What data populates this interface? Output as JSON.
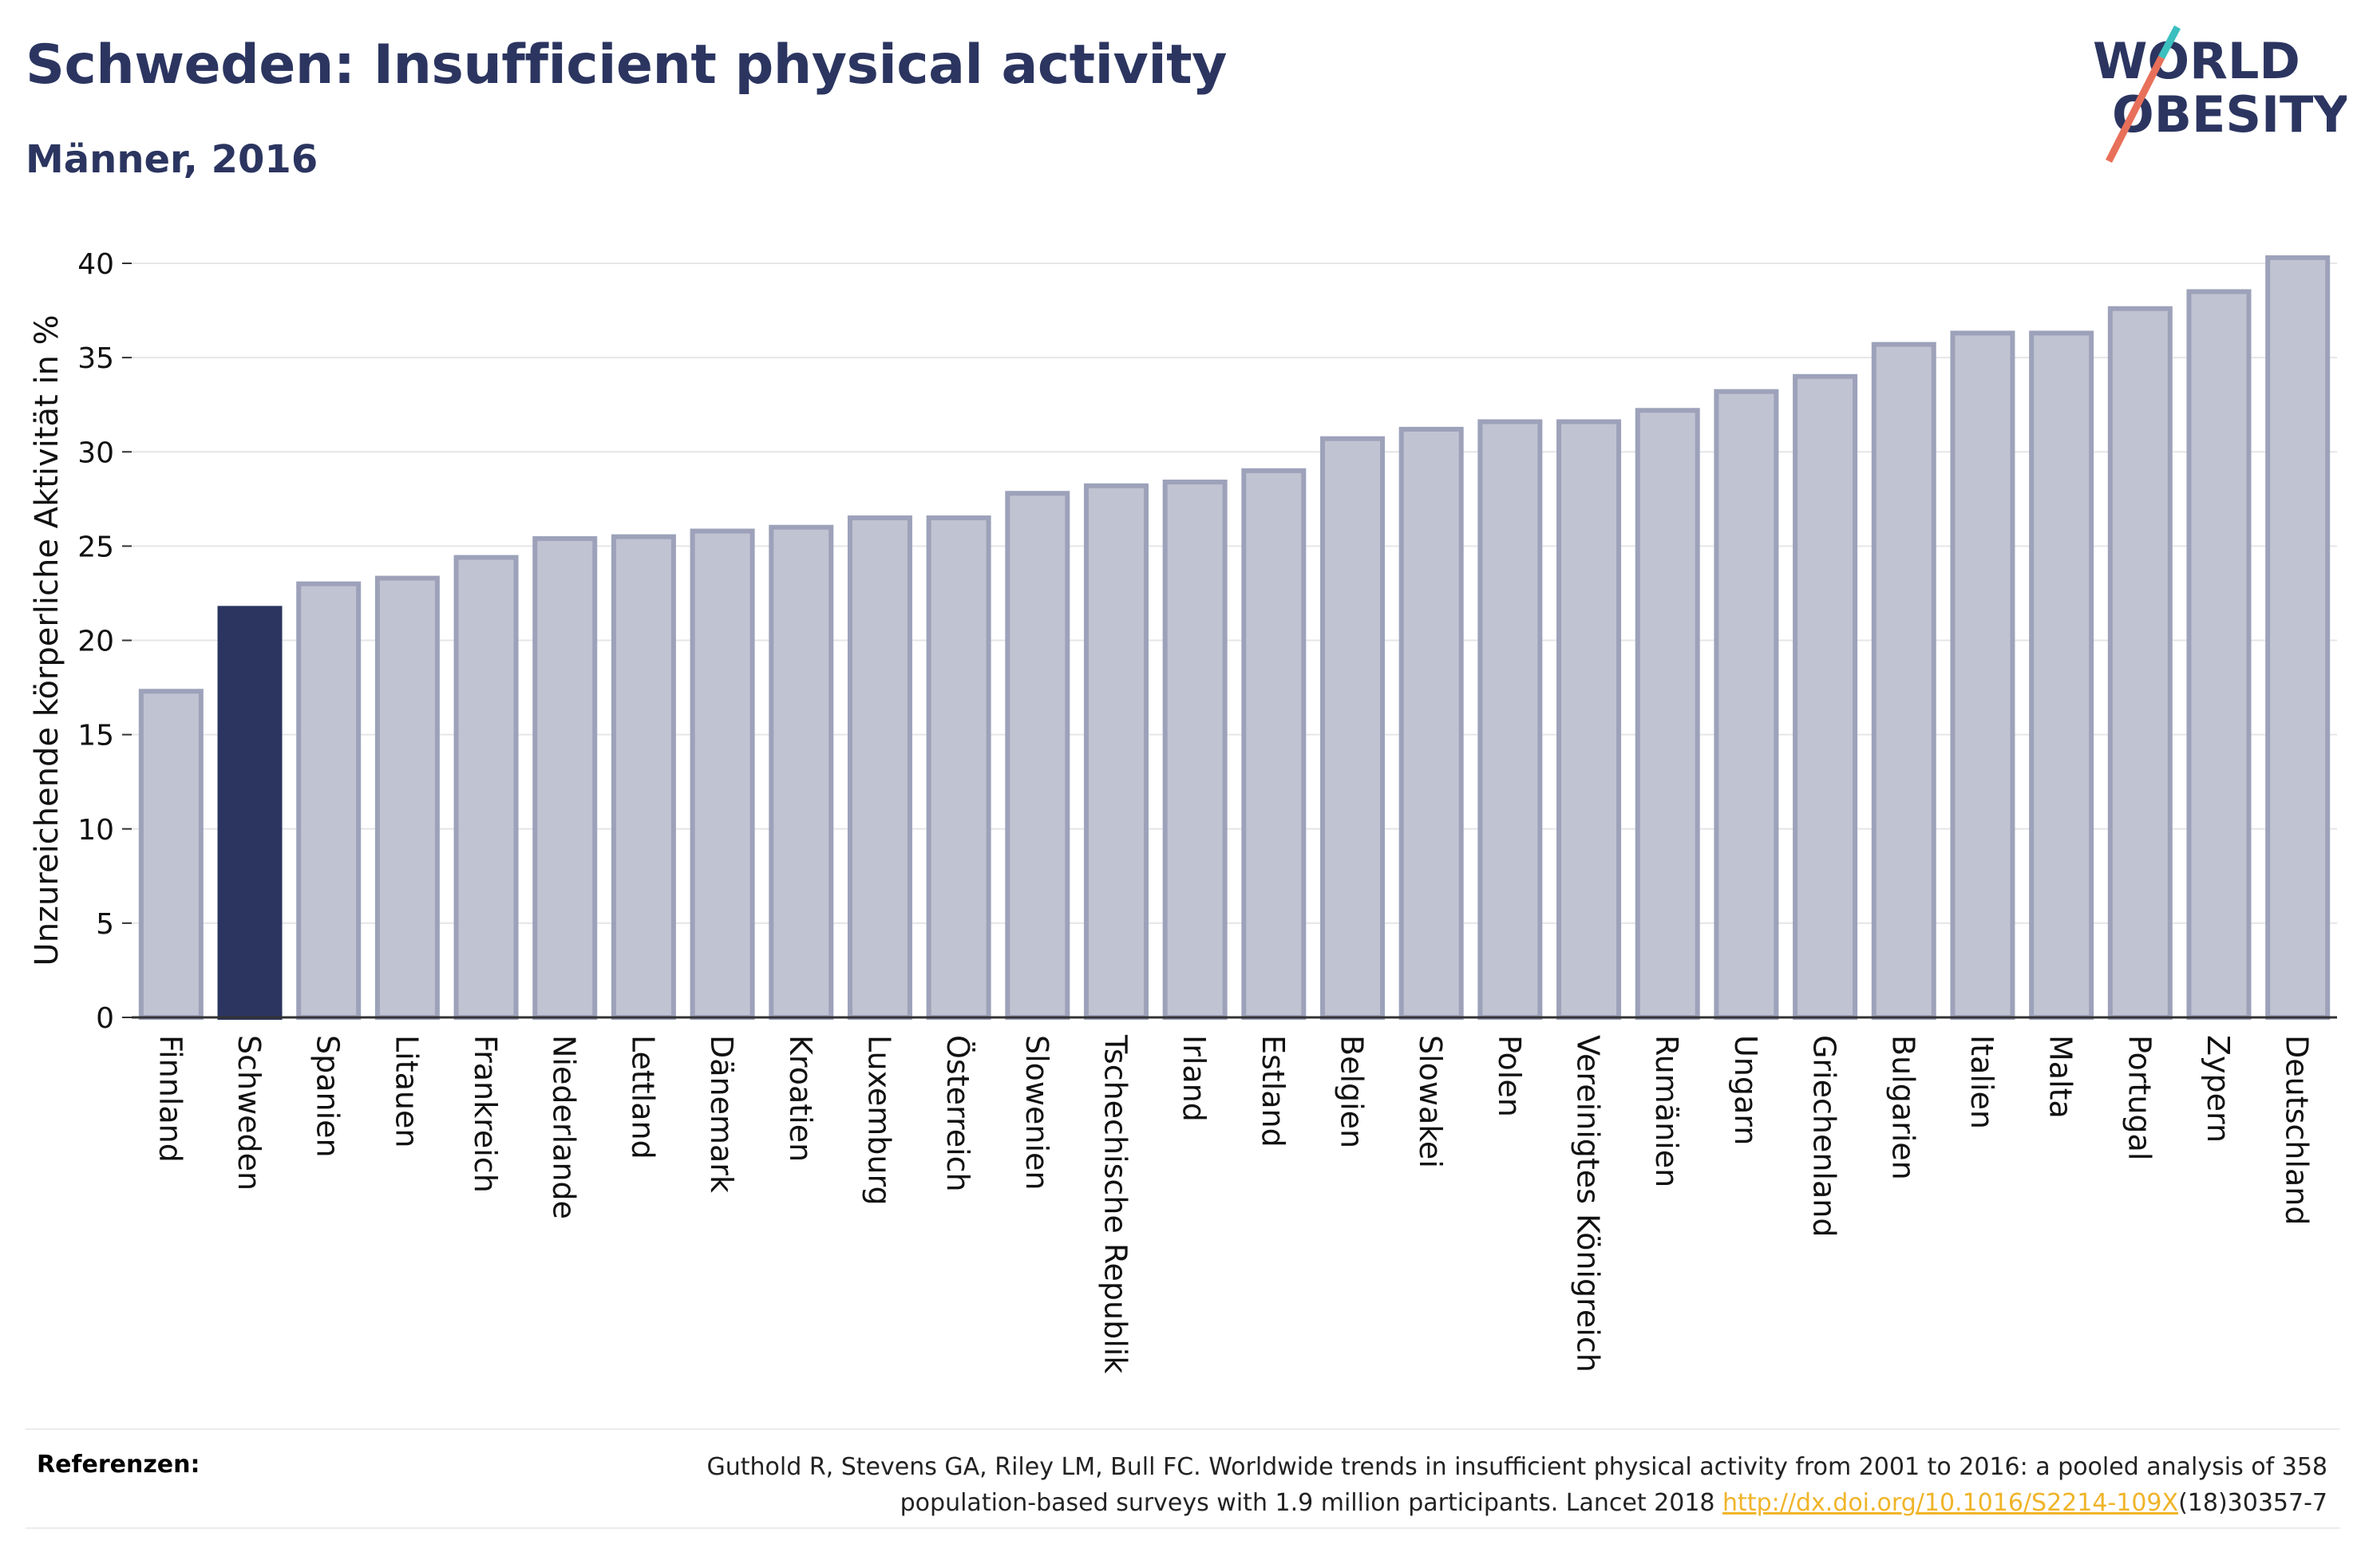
{
  "header": {
    "title": "Schweden: Insufficient physical activity",
    "subtitle": "Männer, 2016"
  },
  "logo": {
    "line1": "WORLD",
    "line2": "OBESITY",
    "brand_color": "#2b3560",
    "accent_teal": "#3bbfbf",
    "accent_coral": "#e8705a"
  },
  "colors": {
    "bar_fill": "#c0c3d1",
    "bar_stroke": "#9da2ba",
    "highlight": "#2b3560",
    "grid": "#e6e6ea"
  },
  "chart_data": {
    "type": "bar",
    "ylabel": "Unzureichende körperliche Aktivität in %",
    "ylim": [
      0,
      40
    ],
    "yticks": [
      0,
      5,
      10,
      15,
      20,
      25,
      30,
      35,
      40
    ],
    "grid": true,
    "highlight_category": "Schweden",
    "categories": [
      "Finnland",
      "Schweden",
      "Spanien",
      "Litauen",
      "Frankreich",
      "Niederlande",
      "Lettland",
      "Dänemark",
      "Kroatien",
      "Luxemburg",
      "Österreich",
      "Slowenien",
      "Tschechische Republik",
      "Irland",
      "Estland",
      "Belgien",
      "Slowakei",
      "Polen",
      "Vereinigtes Königreich",
      "Rumänien",
      "Ungarn",
      "Griechenland",
      "Bulgarien",
      "Italien",
      "Malta",
      "Portugal",
      "Zypern",
      "Deutschland"
    ],
    "values": [
      17.3,
      21.7,
      23.0,
      23.3,
      24.4,
      25.4,
      25.5,
      25.8,
      26.0,
      26.5,
      26.5,
      27.8,
      28.2,
      28.4,
      29.0,
      30.7,
      31.2,
      31.6,
      31.6,
      32.2,
      33.2,
      34.0,
      35.7,
      36.3,
      36.3,
      37.6,
      38.5,
      40.3
    ]
  },
  "references": {
    "label": "Referenzen:",
    "text_line1": "Guthold R, Stevens GA, Riley LM, Bull FC. Worldwide trends in insufficient physical activity from 2001 to 2016: a pooled analysis of 358",
    "text_line2_prefix": "population-based surveys with 1.9 million participants. Lancet 2018 ",
    "link": "http://dx.doi.org/10.1016/S2214-109X",
    "text_line2_suffix": "(18)30357-7"
  }
}
